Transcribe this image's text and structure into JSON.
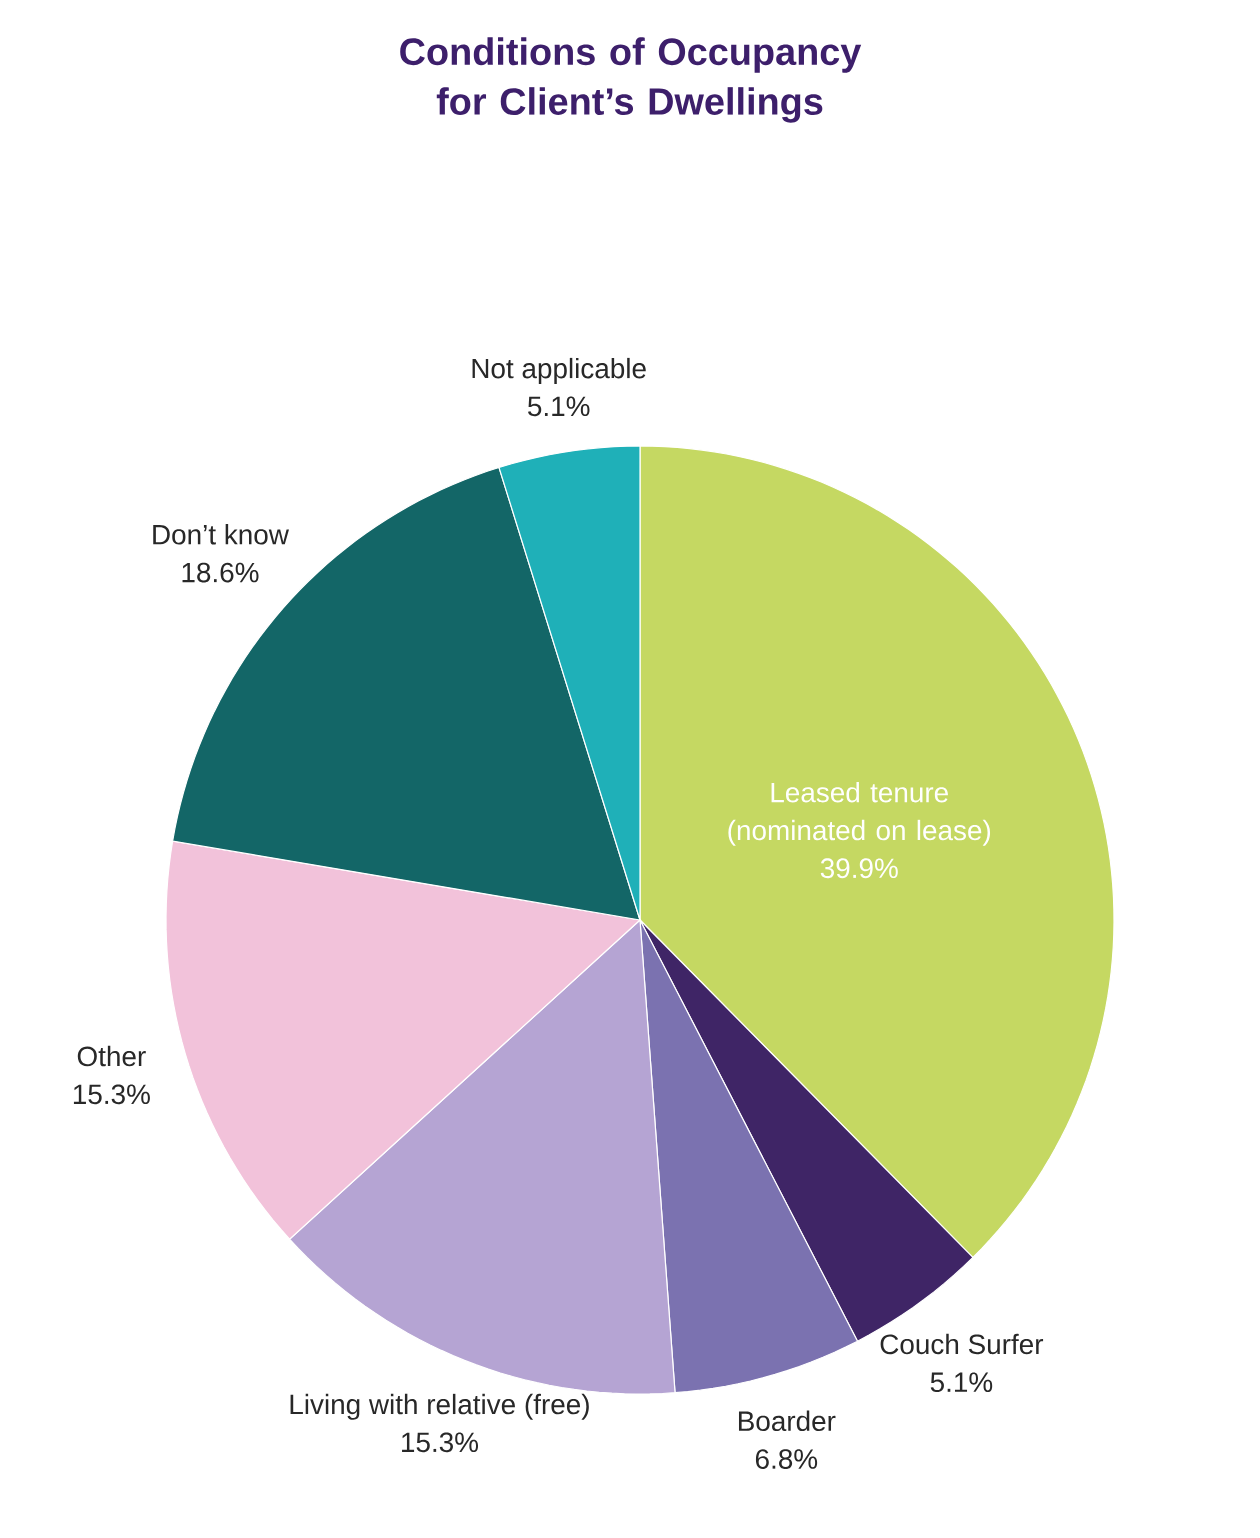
{
  "chart_data": {
    "type": "pie",
    "title": "Conditions of Occupancy for Client’s Dwellings",
    "categories": [
      "Leased tenure (nominated on lease)",
      "Couch Surfer",
      "Boarder",
      "Living with relative (free)",
      "Other",
      "Don’t know",
      "Not applicable"
    ],
    "values": [
      39.9,
      5.1,
      6.8,
      15.3,
      15.3,
      18.6,
      5.1
    ],
    "value_labels": [
      "39.9%",
      "5.1%",
      "6.8%",
      "15.3%",
      "15.3%",
      "18.6%",
      "5.1%"
    ],
    "colors": [
      "#c5d862",
      "#3f2566",
      "#7b72b0",
      "#b5a4d3",
      "#f2c2da",
      "#136667",
      "#1fb0b8"
    ]
  }
}
